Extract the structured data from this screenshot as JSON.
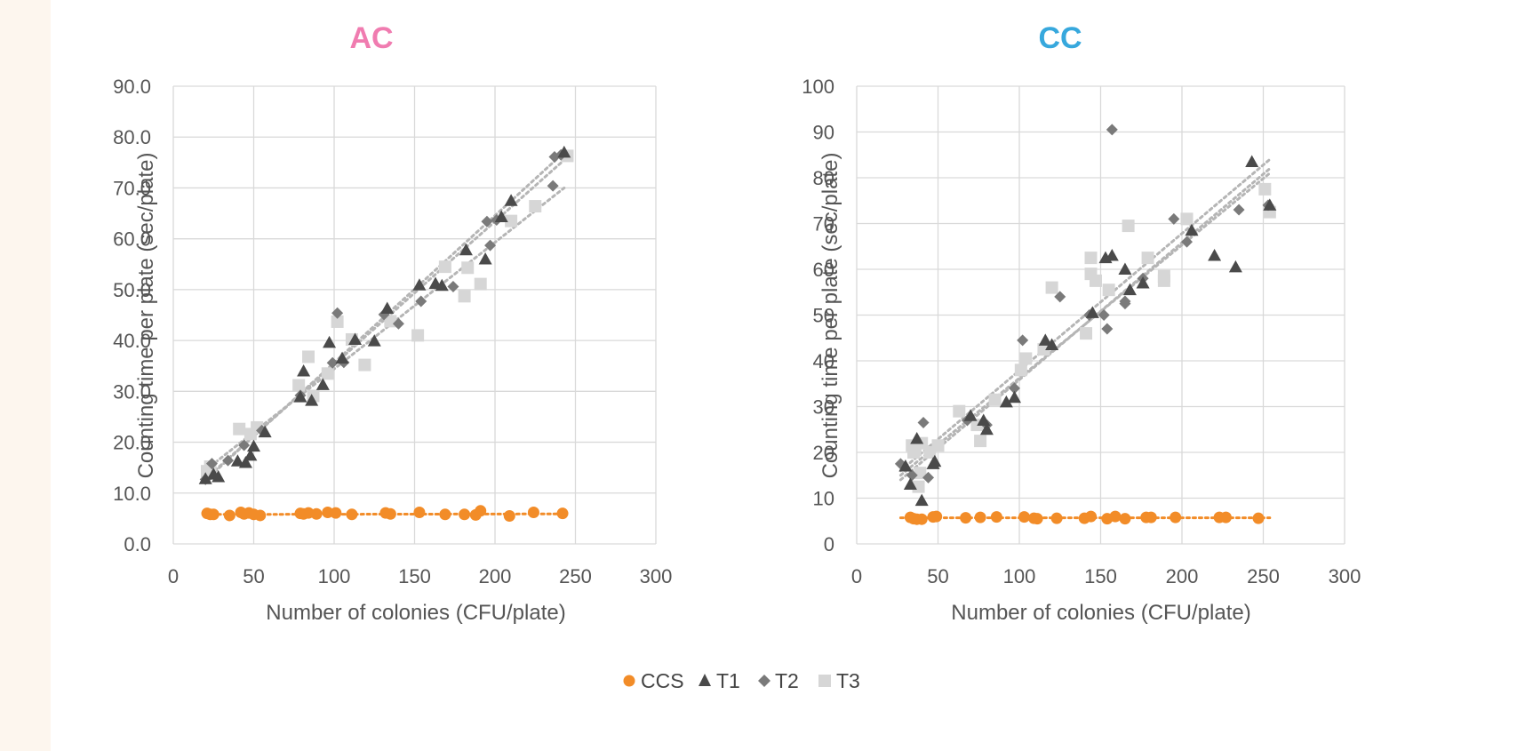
{
  "chart_data": [
    {
      "type": "scatter",
      "title": "AC",
      "title_color": "#f07cb0",
      "xlabel": "Number of colonies (CFU/plate)",
      "ylabel": "Counting time per plate (sec/plate)",
      "xlim": [
        0,
        300
      ],
      "ylim": [
        0,
        90
      ],
      "x_ticks": [
        "0",
        "50",
        "100",
        "150",
        "200",
        "250",
        "300"
      ],
      "y_ticks": [
        "0.0",
        "10.0",
        "20.0",
        "30.0",
        "40.0",
        "50.0",
        "60.0",
        "70.0",
        "80.0",
        "90.0"
      ],
      "grid": true,
      "series": [
        {
          "name": "CCS",
          "color": "#f28c28",
          "marker": "circle",
          "trendline": [
            [
              20,
              5.8
            ],
            [
              243,
              5.9
            ]
          ],
          "points": [
            [
              21,
              6.0
            ],
            [
              23,
              5.8
            ],
            [
              25,
              5.8
            ],
            [
              35,
              5.6
            ],
            [
              42,
              6.2
            ],
            [
              44,
              5.9
            ],
            [
              47,
              6.1
            ],
            [
              50,
              5.8
            ],
            [
              54,
              5.6
            ],
            [
              79,
              6.0
            ],
            [
              81,
              5.9
            ],
            [
              84,
              6.1
            ],
            [
              89,
              5.9
            ],
            [
              96,
              6.2
            ],
            [
              101,
              6.1
            ],
            [
              111,
              5.8
            ],
            [
              132,
              6.1
            ],
            [
              135,
              5.9
            ],
            [
              153,
              6.2
            ],
            [
              169,
              5.8
            ],
            [
              181,
              5.8
            ],
            [
              188,
              5.7
            ],
            [
              191,
              6.5
            ],
            [
              209,
              5.5
            ],
            [
              224,
              6.2
            ],
            [
              242,
              6.0
            ]
          ]
        },
        {
          "name": "T1",
          "color": "#4a4a4a",
          "marker": "triangle",
          "trendline": [
            [
              20,
              12.5
            ],
            [
              243,
              77
            ]
          ],
          "points": [
            [
              20,
              12.8
            ],
            [
              25,
              13.7
            ],
            [
              28,
              13.2
            ],
            [
              40,
              16.3
            ],
            [
              45,
              16.0
            ],
            [
              48,
              17.4
            ],
            [
              50,
              19.2
            ],
            [
              57,
              22.0
            ],
            [
              79,
              28.9
            ],
            [
              81,
              34.0
            ],
            [
              86,
              28.2
            ],
            [
              93,
              31.3
            ],
            [
              97,
              39.6
            ],
            [
              105,
              36.5
            ],
            [
              113,
              40.2
            ],
            [
              125,
              39.9
            ],
            [
              133,
              46.3
            ],
            [
              153,
              50.9
            ],
            [
              163,
              51.2
            ],
            [
              167,
              50.8
            ],
            [
              182,
              57.8
            ],
            [
              194,
              56.0
            ],
            [
              204,
              64.3
            ],
            [
              210,
              67.5
            ],
            [
              243,
              77.0
            ]
          ]
        },
        {
          "name": "T2",
          "color": "#7a7a7a",
          "marker": "diamond",
          "trendline": [
            [
              20,
              12.8
            ],
            [
              243,
              75.5
            ]
          ],
          "points": [
            [
              20,
              12.7
            ],
            [
              24,
              15.8
            ],
            [
              34,
              16.4
            ],
            [
              44,
              19.4
            ],
            [
              55,
              22.3
            ],
            [
              79,
              29.2
            ],
            [
              99,
              35.6
            ],
            [
              102,
              45.4
            ],
            [
              106,
              35.7
            ],
            [
              131,
              45.1
            ],
            [
              140,
              43.3
            ],
            [
              154,
              47.7
            ],
            [
              174,
              50.6
            ],
            [
              195,
              63.4
            ],
            [
              197,
              58.7
            ],
            [
              201,
              63.7
            ],
            [
              236,
              70.4
            ],
            [
              237,
              76.1
            ],
            [
              241,
              76.5
            ]
          ]
        },
        {
          "name": "T3",
          "color": "#d6d6d6",
          "marker": "square",
          "trendline": [
            [
              20,
              14.5
            ],
            [
              243,
              70
            ]
          ],
          "points": [
            [
              21,
              14.3
            ],
            [
              23,
              15.2
            ],
            [
              41,
              22.6
            ],
            [
              48,
              21.6
            ],
            [
              52,
              22.9
            ],
            [
              78,
              31.2
            ],
            [
              84,
              36.8
            ],
            [
              87,
              29.1
            ],
            [
              96,
              33.5
            ],
            [
              102,
              43.7
            ],
            [
              111,
              40.2
            ],
            [
              119,
              35.2
            ],
            [
              135,
              43.8
            ],
            [
              152,
              41.0
            ],
            [
              169,
              54.5
            ],
            [
              181,
              48.7
            ],
            [
              183,
              54.3
            ],
            [
              191,
              51.1
            ],
            [
              210,
              63.5
            ],
            [
              225,
              66.4
            ],
            [
              245,
              76.3
            ]
          ]
        }
      ]
    },
    {
      "type": "scatter",
      "title": "CC",
      "title_color": "#37a8dd",
      "xlabel": "Number of colonies (CFU/plate)",
      "ylabel": "Counting time per plate (sec/plate)",
      "xlim": [
        0,
        300
      ],
      "ylim": [
        0,
        100
      ],
      "x_ticks": [
        "0",
        "50",
        "100",
        "150",
        "200",
        "250",
        "300"
      ],
      "y_ticks": [
        "0",
        "10",
        "20",
        "30",
        "40",
        "50",
        "60",
        "70",
        "80",
        "90",
        "100"
      ],
      "grid": true,
      "series": [
        {
          "name": "CCS",
          "color": "#f28c28",
          "marker": "circle",
          "trendline": [
            [
              27,
              5.7
            ],
            [
              254,
              5.7
            ]
          ],
          "points": [
            [
              33,
              5.8
            ],
            [
              35,
              5.5
            ],
            [
              37,
              5.4
            ],
            [
              40,
              5.4
            ],
            [
              47,
              5.9
            ],
            [
              49,
              6.0
            ],
            [
              67,
              5.7
            ],
            [
              76,
              5.8
            ],
            [
              86,
              5.9
            ],
            [
              103,
              5.9
            ],
            [
              109,
              5.6
            ],
            [
              111,
              5.5
            ],
            [
              123,
              5.6
            ],
            [
              140,
              5.6
            ],
            [
              144,
              6.0
            ],
            [
              154,
              5.5
            ],
            [
              159,
              6.0
            ],
            [
              165,
              5.5
            ],
            [
              178,
              5.8
            ],
            [
              181,
              5.8
            ],
            [
              196,
              5.8
            ],
            [
              223,
              5.8
            ],
            [
              227,
              5.8
            ],
            [
              247,
              5.6
            ]
          ]
        },
        {
          "name": "T1",
          "color": "#4a4a4a",
          "marker": "triangle",
          "trendline": [
            [
              27,
              14
            ],
            [
              254,
              82
            ]
          ],
          "points": [
            [
              30,
              17.0
            ],
            [
              33,
              13.0
            ],
            [
              37,
              23.0
            ],
            [
              40,
              9.5
            ],
            [
              47,
              17.5
            ],
            [
              48,
              18.0
            ],
            [
              70,
              28.0
            ],
            [
              78,
              27.0
            ],
            [
              80,
              25.0
            ],
            [
              92,
              31.0
            ],
            [
              97,
              32.0
            ],
            [
              116,
              44.5
            ],
            [
              120,
              43.5
            ],
            [
              145,
              50.5
            ],
            [
              153,
              62.5
            ],
            [
              157,
              63.0
            ],
            [
              165,
              60.0
            ],
            [
              168,
              55.5
            ],
            [
              176,
              57.0
            ],
            [
              206,
              68.5
            ],
            [
              220,
              63.0
            ],
            [
              233,
              60.5
            ],
            [
              243,
              83.5
            ],
            [
              254,
              74.0
            ]
          ]
        },
        {
          "name": "T2",
          "color": "#7a7a7a",
          "marker": "diamond",
          "trendline": [
            [
              27,
              15
            ],
            [
              254,
              81
            ]
          ],
          "points": [
            [
              27,
              17.5
            ],
            [
              34,
              15.0
            ],
            [
              41,
              26.5
            ],
            [
              44,
              14.5
            ],
            [
              68,
              27.0
            ],
            [
              80,
              26.0
            ],
            [
              97,
              34.0
            ],
            [
              102,
              44.5
            ],
            [
              125,
              54.0
            ],
            [
              143,
              50.0
            ],
            [
              152,
              50.0
            ],
            [
              154,
              47.0
            ],
            [
              157,
              90.5
            ],
            [
              165,
              53.0
            ],
            [
              165,
              52.5
            ],
            [
              176,
              58.0
            ],
            [
              195,
              71.0
            ],
            [
              203,
              66.0
            ],
            [
              235,
              73.0
            ],
            [
              253,
              74.0
            ]
          ]
        },
        {
          "name": "T3",
          "color": "#d6d6d6",
          "marker": "square",
          "trendline": [
            [
              27,
              16
            ],
            [
              254,
              84
            ]
          ],
          "points": [
            [
              34,
              21.5
            ],
            [
              35,
              20.0
            ],
            [
              36,
              20.5
            ],
            [
              38,
              12.5
            ],
            [
              39,
              15.5
            ],
            [
              40,
              22.0
            ],
            [
              45,
              20.0
            ],
            [
              50,
              21.5
            ],
            [
              63,
              29.0
            ],
            [
              74,
              26.0
            ],
            [
              76,
              22.5
            ],
            [
              85,
              31.5
            ],
            [
              101,
              38.0
            ],
            [
              104,
              40.5
            ],
            [
              115,
              42.5
            ],
            [
              120,
              56.0
            ],
            [
              141,
              46.0
            ],
            [
              144,
              62.5
            ],
            [
              144,
              59.0
            ],
            [
              147,
              57.5
            ],
            [
              155,
              55.5
            ],
            [
              167,
              69.5
            ],
            [
              179,
              62.5
            ],
            [
              189,
              58.5
            ],
            [
              189,
              57.5
            ],
            [
              203,
              71.0
            ],
            [
              251,
              77.5
            ],
            [
              254,
              72.5
            ]
          ]
        }
      ]
    }
  ],
  "legend": [
    {
      "name": "CCS",
      "marker": "circle",
      "color": "#f28c28"
    },
    {
      "name": "T1",
      "marker": "triangle",
      "color": "#4a4a4a"
    },
    {
      "name": "T2",
      "marker": "diamond",
      "color": "#7a7a7a"
    },
    {
      "name": "T3",
      "marker": "square",
      "color": "#d6d6d6"
    }
  ],
  "legend_position": "bottom-center"
}
